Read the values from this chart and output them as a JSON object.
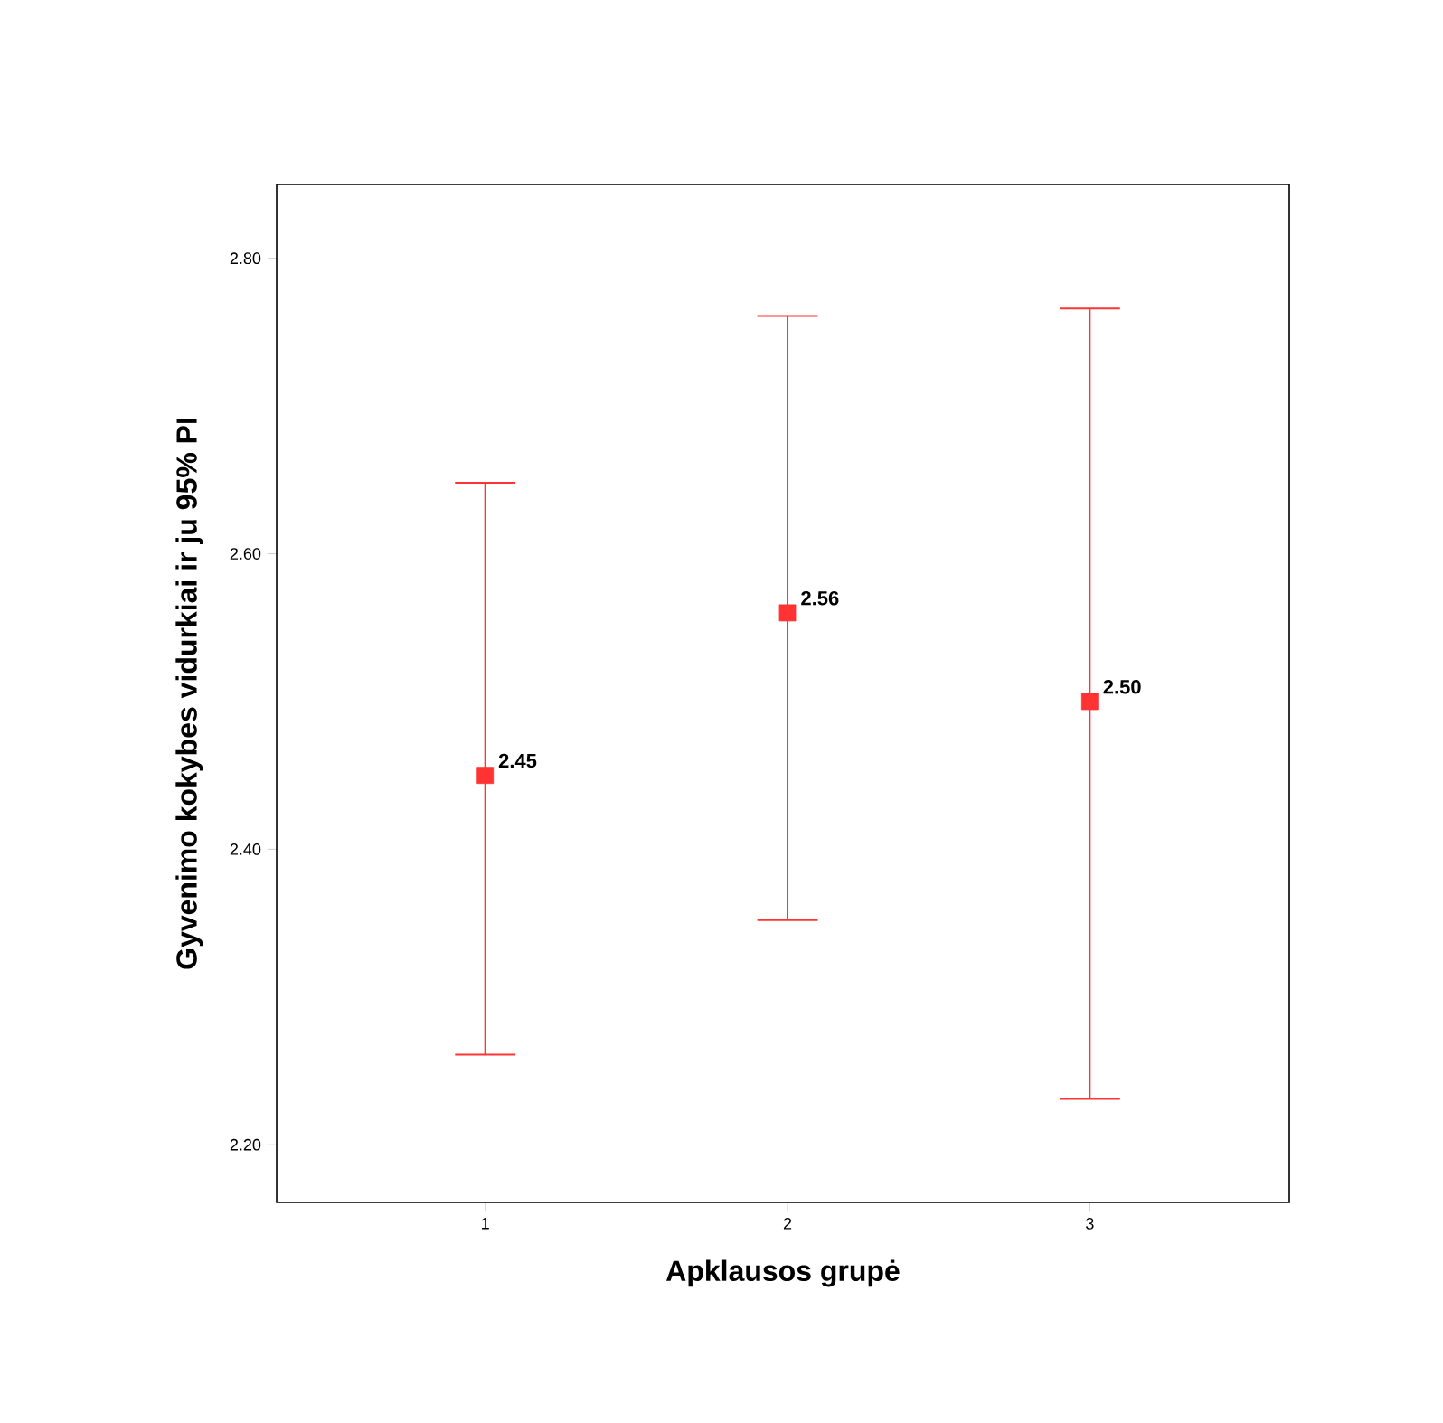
{
  "chart_data": {
    "type": "scatter",
    "categories": [
      "1",
      "2",
      "3"
    ],
    "values": [
      2.45,
      2.56,
      2.5
    ],
    "errors": [
      [
        2.261,
        2.648
      ],
      [
        2.352,
        2.761
      ],
      [
        2.231,
        2.766
      ]
    ],
    "color": "#ff3333",
    "marker": "square",
    "value_labels": [
      "2.45",
      "2.56",
      "2.50"
    ],
    "xlabel": "Apklausos grupė",
    "ylabel": "Gyvenimo kokybes vidurkiai ir ju 95% PI",
    "ylim": [
      2.161,
      2.85
    ],
    "yticks": [
      {
        "value": 2.2,
        "label": "2.20"
      },
      {
        "value": 2.4,
        "label": "2.40"
      },
      {
        "value": 2.6,
        "label": "2.60"
      },
      {
        "value": 2.8,
        "label": "2.80"
      }
    ],
    "grid": false
  }
}
